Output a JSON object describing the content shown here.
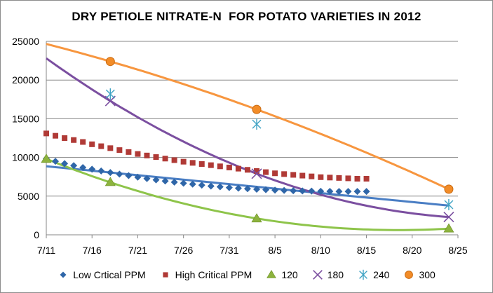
{
  "chart_data": {
    "type": "scatter",
    "title": "DRY PETIOLE NITRATE-N  FOR POTATO VARIETIES IN 2012",
    "xlabel": "",
    "ylabel": "",
    "x_ticks": [
      "7/11",
      "7/16",
      "7/21",
      "7/26",
      "7/31",
      "8/5",
      "8/10",
      "8/15",
      "8/20",
      "8/25"
    ],
    "y_ticks": [
      "0",
      "5000",
      "10000",
      "15000",
      "20000",
      "25000"
    ],
    "xlim": [
      "7/11",
      "8/25"
    ],
    "ylim": [
      0,
      25000
    ],
    "grid": "horizontal",
    "legend_position": "bottom",
    "series": [
      {
        "name": "Low Crtical PPM",
        "marker": "diamond",
        "color": "#2f66a8",
        "x": [
          "7/11",
          "7/12",
          "7/13",
          "7/14",
          "7/15",
          "7/16",
          "7/17",
          "7/18",
          "7/19",
          "7/20",
          "7/21",
          "7/22",
          "7/23",
          "7/24",
          "7/25",
          "7/26",
          "7/27",
          "7/28",
          "7/29",
          "7/30",
          "7/31",
          "8/1",
          "8/2",
          "8/3",
          "8/4",
          "8/5",
          "8/6",
          "8/7",
          "8/8",
          "8/9",
          "8/10",
          "8/11",
          "8/12",
          "8/13",
          "8/14",
          "8/15"
        ],
        "y": [
          9850,
          9500,
          9200,
          8950,
          8700,
          8480,
          8250,
          8050,
          7850,
          7650,
          7450,
          7270,
          7100,
          6950,
          6800,
          6670,
          6540,
          6420,
          6300,
          6200,
          6100,
          6020,
          5950,
          5890,
          5830,
          5780,
          5740,
          5700,
          5670,
          5650,
          5630,
          5620,
          5610,
          5610,
          5610,
          5610
        ]
      },
      {
        "name": "High Critical PPM",
        "marker": "square",
        "color": "#b03a36",
        "x": [
          "7/11",
          "7/12",
          "7/13",
          "7/14",
          "7/15",
          "7/16",
          "7/17",
          "7/18",
          "7/19",
          "7/20",
          "7/21",
          "7/22",
          "7/23",
          "7/24",
          "7/25",
          "7/26",
          "7/27",
          "7/28",
          "7/29",
          "7/30",
          "7/31",
          "8/1",
          "8/2",
          "8/3",
          "8/4",
          "8/5",
          "8/6",
          "8/7",
          "8/8",
          "8/9",
          "8/10",
          "8/11",
          "8/12",
          "8/13",
          "8/14",
          "8/15"
        ],
        "y": [
          13100,
          12800,
          12500,
          12250,
          12000,
          11700,
          11450,
          11200,
          10950,
          10700,
          10450,
          10250,
          10050,
          9850,
          9650,
          9450,
          9300,
          9150,
          9000,
          8850,
          8700,
          8550,
          8400,
          8250,
          8100,
          7950,
          7850,
          7750,
          7650,
          7550,
          7450,
          7400,
          7350,
          7300,
          7250,
          7250
        ]
      },
      {
        "name": "120",
        "marker": "triangle",
        "color": "#8db33e",
        "x": [
          "7/11",
          "7/18",
          "8/3",
          "8/24"
        ],
        "y": [
          9800,
          6800,
          2100,
          800
        ]
      },
      {
        "name": "180",
        "marker": "x",
        "color": "#7b4fa0",
        "x": [
          "7/18",
          "8/3",
          "8/24"
        ],
        "y": [
          17300,
          7900,
          2300
        ]
      },
      {
        "name": "240",
        "marker": "star",
        "color": "#3fa3c4",
        "x": [
          "7/18",
          "8/3",
          "8/24"
        ],
        "y": [
          18200,
          14300,
          3900
        ]
      },
      {
        "name": "300",
        "marker": "circle",
        "color": "#f28c28",
        "x": [
          "7/18",
          "8/3",
          "8/24"
        ],
        "y": [
          22400,
          16200,
          5900
        ]
      }
    ],
    "trendlines": [
      {
        "series": "Low Crtical PPM",
        "kind": "linear",
        "color": "#4a7ec4"
      },
      {
        "series": "120",
        "kind": "polynomial",
        "color": "#8ec44a"
      },
      {
        "series": "180",
        "kind": "polynomial",
        "color": "#7b4fa0"
      },
      {
        "series": "300",
        "kind": "polynomial",
        "color": "#f7963f"
      }
    ]
  }
}
